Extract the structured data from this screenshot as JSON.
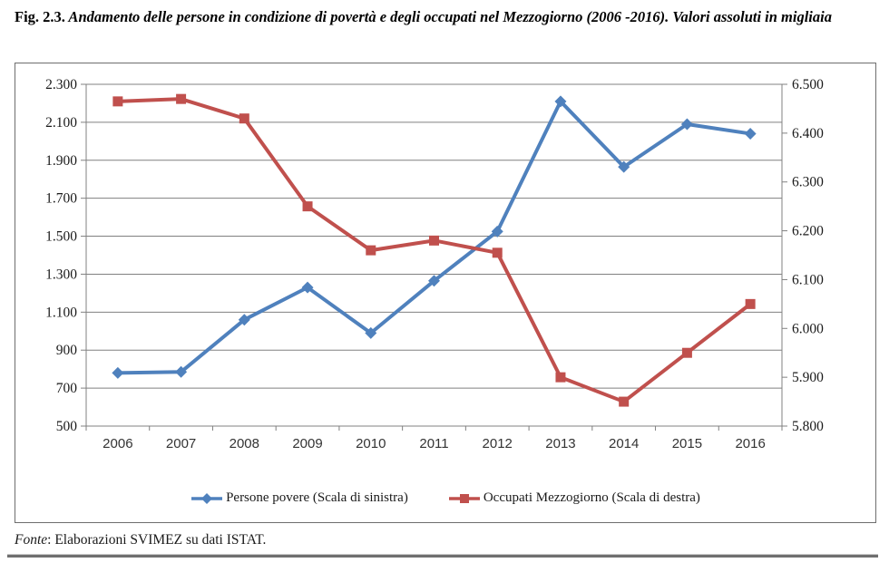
{
  "figure": {
    "caption_label": "Fig. 2.3.",
    "caption_text": " Andamento delle persone in condizione di povertà e degli occupati nel Mezzogiorno (2006 -2016). Valori assoluti in migliaia"
  },
  "source_note": {
    "prefix": "Fonte",
    "text": ": Elaborazioni SVIMEZ su dati ISTAT."
  },
  "colors": {
    "series_blue": "#4F81BD",
    "series_red": "#C0504D",
    "grid": "#808080",
    "axis": "#808080",
    "tick_text": "#1a1a1a",
    "box_border": "#6e6e6e"
  },
  "chart_data": {
    "type": "line",
    "title": "Andamento delle persone in condizione di povertà e degli occupati nel Mezzogiorno (2006-2016), valori assoluti in migliaia",
    "categories": [
      "2006",
      "2007",
      "2008",
      "2009",
      "2010",
      "2011",
      "2012",
      "2013",
      "2014",
      "2015",
      "2016"
    ],
    "series": [
      {
        "name": "Persone povere (Scala di sinistra)",
        "axis": "left",
        "color": "#4F81BD",
        "marker": "diamond",
        "values": [
          780,
          785,
          1060,
          1230,
          990,
          1265,
          1525,
          2210,
          1865,
          2090,
          2040
        ]
      },
      {
        "name": "Occupati Mezzogiorno (Scala di destra)",
        "axis": "right",
        "color": "#C0504D",
        "marker": "square",
        "values": [
          6465,
          6470,
          6430,
          6250,
          6160,
          6180,
          6155,
          5900,
          5850,
          5950,
          6050
        ]
      }
    ],
    "left_axis": {
      "min": 500,
      "max": 2300,
      "step": 200,
      "tick_labels": [
        "500",
        "700",
        "900",
        "1.100",
        "1.300",
        "1.500",
        "1.700",
        "1.900",
        "2.100",
        "2.300"
      ]
    },
    "right_axis": {
      "min": 5800,
      "max": 6500,
      "step": 100,
      "tick_labels": [
        "5.800",
        "5.900",
        "6.000",
        "6.100",
        "6.200",
        "6.300",
        "6.400",
        "6.500"
      ]
    },
    "grid": true,
    "legend_position": "bottom"
  }
}
